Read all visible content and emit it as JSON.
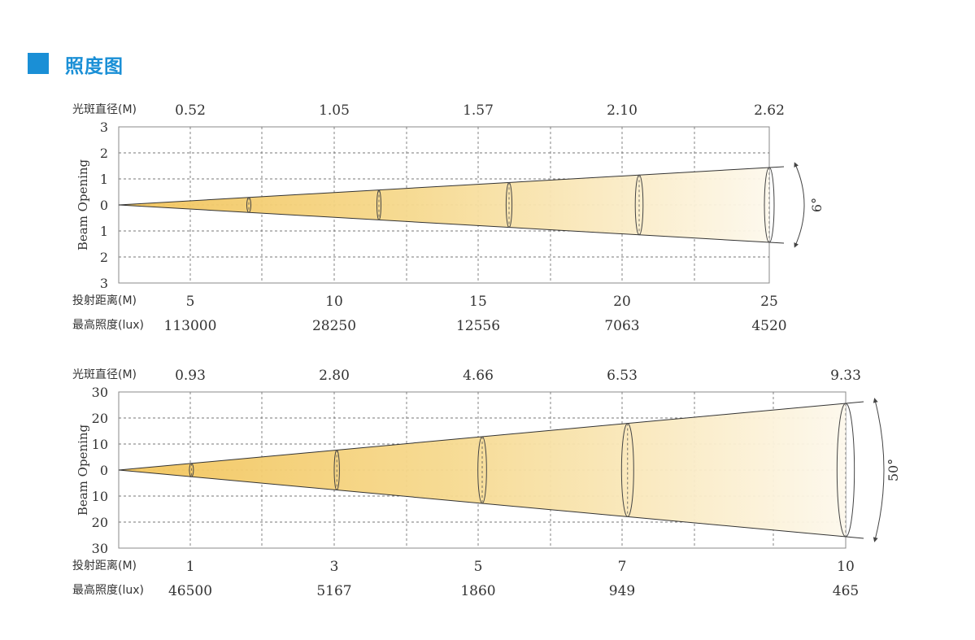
{
  "title": "照度图",
  "labels": {
    "diameter": "光斑直径(M)",
    "distance": "投射距离(M)",
    "illuminance": "最高照度(lux)",
    "y_axis": "Beam Opening"
  },
  "colors": {
    "accent": "#1a8fd6",
    "beam_start": "#f2c45a",
    "beam_end": "#fdf6e6"
  },
  "diagrams": [
    {
      "angle": "6°",
      "y_ticks": [
        "3",
        "2",
        "1",
        "0",
        "1",
        "2",
        "3"
      ],
      "y_max": 3,
      "x_max": 25,
      "points": [
        {
          "distance": "5",
          "diameter": "0.52",
          "illuminance": "113000"
        },
        {
          "distance": "10",
          "diameter": "1.05",
          "illuminance": "28250"
        },
        {
          "distance": "15",
          "diameter": "1.57",
          "illuminance": "12556"
        },
        {
          "distance": "20",
          "diameter": "2.10",
          "illuminance": "7063"
        },
        {
          "distance": "25",
          "diameter": "2.62",
          "illuminance": "4520"
        }
      ]
    },
    {
      "angle": "50°",
      "y_ticks": [
        "30",
        "20",
        "10",
        "0",
        "10",
        "20",
        "30"
      ],
      "y_max": 30,
      "x_max": 10,
      "points": [
        {
          "distance": "1",
          "diameter": "0.93",
          "illuminance": "46500"
        },
        {
          "distance": "3",
          "diameter": "2.80",
          "illuminance": "5167"
        },
        {
          "distance": "5",
          "diameter": "4.66",
          "illuminance": "1860"
        },
        {
          "distance": "7",
          "diameter": "6.53",
          "illuminance": "949"
        },
        {
          "distance": "10",
          "diameter": "9.33",
          "illuminance": "465"
        }
      ]
    }
  ]
}
